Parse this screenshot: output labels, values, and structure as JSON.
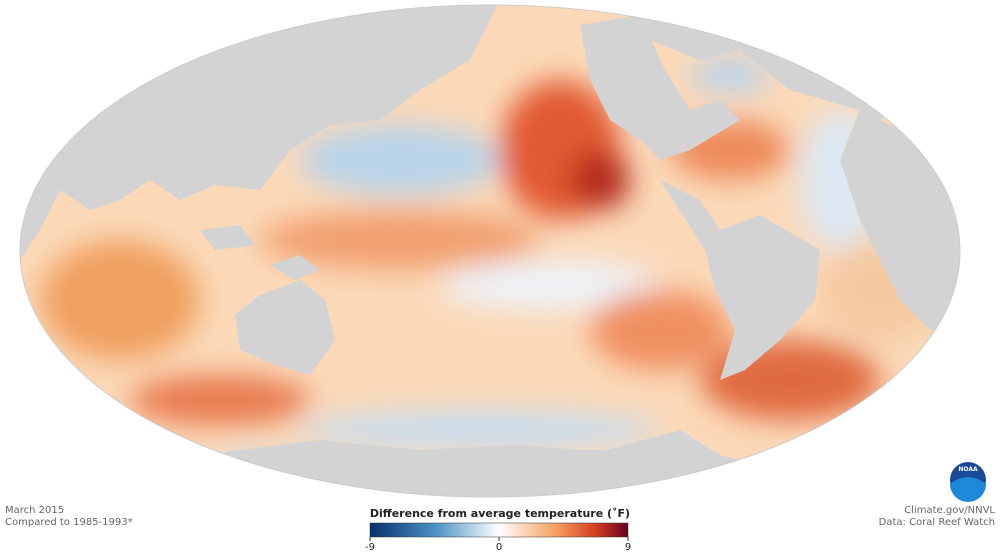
{
  "footer": {
    "date": "March 2015",
    "baseline": "Compared to 1985-1993*",
    "credit": "Climate.gov/NNVL",
    "source": "Data: Coral Reef Watch"
  },
  "logo": "NOAA",
  "legend": {
    "title": "Difference from average temperature (˚F)",
    "lim": [
      -9,
      9
    ],
    "ticks": [
      -9,
      0,
      9
    ]
  }
}
